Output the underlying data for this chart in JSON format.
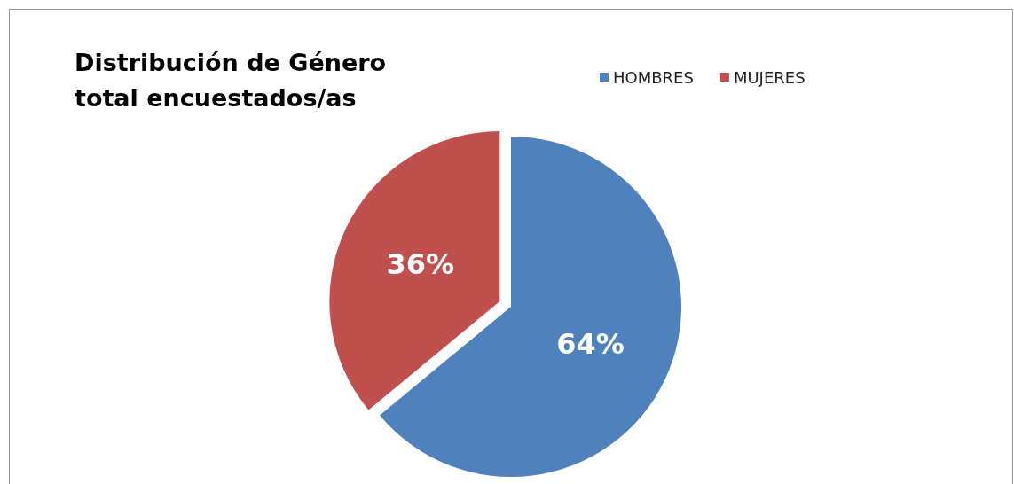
{
  "chart_data": {
    "type": "pie",
    "title": "Distribución de Género total encuestados/as",
    "categories": [
      "HOMBRES",
      "MUJERES"
    ],
    "values": [
      64,
      36
    ],
    "colors": [
      "#4f81bd",
      "#c0504d"
    ],
    "value_labels": [
      "64%",
      "36%"
    ],
    "legend": "top right"
  }
}
